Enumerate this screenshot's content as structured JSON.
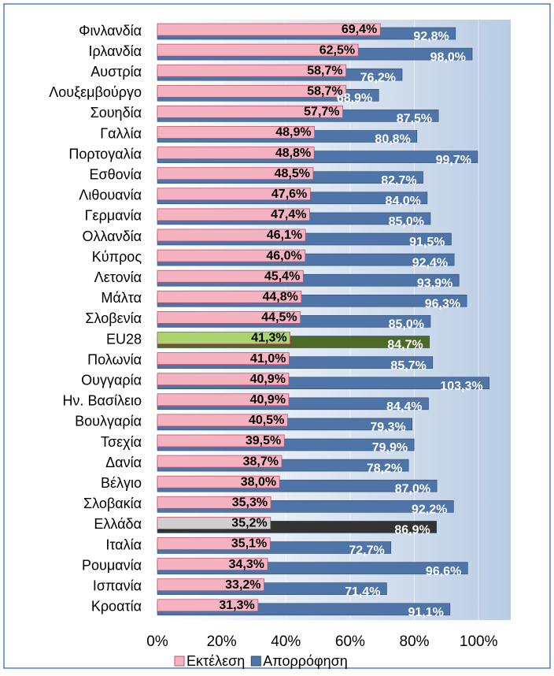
{
  "chart_data": {
    "type": "bar",
    "orientation": "horizontal",
    "legend": "bottom",
    "grid": true,
    "categories": [
      "Φινλανδία",
      "Ιρλανδία",
      "Αυστρία",
      "Λουξεμβούργο",
      "Σουηδία",
      "Γαλλία",
      "Πορτογαλία",
      "Εσθονία",
      "Λιθουανία",
      "Γερμανία",
      "Ολλανδία",
      "Κύπρος",
      "Λετονία",
      "Μάλτα",
      "Σλοβενία",
      "EU28",
      "Πολωνία",
      "Ουγγαρία",
      "Ην. Βασίλειο",
      "Βουλγαρία",
      "Τσεχία",
      "Δανία",
      "Βέλγιο",
      "Σλοβακία",
      "Ελλάδα",
      "Ιταλία",
      "Ρουμανία",
      "Ισπανία",
      "Κροατία"
    ],
    "series": [
      {
        "name": "Εκτέλεση",
        "color": "#f5b3c1",
        "colors": [
          "#f5b3c1",
          "#f5b3c1",
          "#f5b3c1",
          "#f5b3c1",
          "#f5b3c1",
          "#f5b3c1",
          "#f5b3c1",
          "#f5b3c1",
          "#f5b3c1",
          "#f5b3c1",
          "#f5b3c1",
          "#f5b3c1",
          "#f5b3c1",
          "#f5b3c1",
          "#f5b3c1",
          "#a9d46e",
          "#f5b3c1",
          "#f5b3c1",
          "#f5b3c1",
          "#f5b3c1",
          "#f5b3c1",
          "#f5b3c1",
          "#f5b3c1",
          "#f5b3c1",
          "#cfcfcf",
          "#f5b3c1",
          "#f5b3c1",
          "#f5b3c1",
          "#f5b3c1"
        ],
        "values": [
          69.4,
          62.5,
          58.7,
          58.7,
          57.7,
          48.9,
          48.8,
          48.5,
          47.6,
          47.4,
          46.1,
          46.0,
          45.4,
          44.8,
          44.5,
          41.3,
          41.0,
          40.9,
          40.9,
          40.5,
          39.5,
          38.7,
          38.0,
          35.3,
          35.2,
          35.1,
          34.3,
          33.2,
          31.3
        ],
        "value_labels": [
          "69,4%",
          "62,5%",
          "58,7%",
          "58,7%",
          "57,7%",
          "48,9%",
          "48,8%",
          "48,5%",
          "47,6%",
          "47,4%",
          "46,1%",
          "46,0%",
          "45,4%",
          "44,8%",
          "44,5%",
          "41,3%",
          "41,0%",
          "40,9%",
          "40,9%",
          "40,5%",
          "39,5%",
          "38,7%",
          "38,0%",
          "35,3%",
          "35,2%",
          "35,1%",
          "34,3%",
          "33,2%",
          "31,3%"
        ]
      },
      {
        "name": "Απορρόφηση",
        "color": "#4f74a8",
        "colors": [
          "#4f74a8",
          "#4f74a8",
          "#4f74a8",
          "#4f74a8",
          "#4f74a8",
          "#4f74a8",
          "#4f74a8",
          "#4f74a8",
          "#4f74a8",
          "#4f74a8",
          "#4f74a8",
          "#4f74a8",
          "#4f74a8",
          "#4f74a8",
          "#4f74a8",
          "#4d6a27",
          "#4f74a8",
          "#4f74a8",
          "#4f74a8",
          "#4f74a8",
          "#4f74a8",
          "#4f74a8",
          "#4f74a8",
          "#4f74a8",
          "#333333",
          "#4f74a8",
          "#4f74a8",
          "#4f74a8",
          "#4f74a8"
        ],
        "values": [
          92.8,
          98.0,
          76.2,
          68.9,
          87.5,
          80.8,
          99.7,
          82.7,
          84.0,
          85.0,
          91.5,
          92.4,
          93.9,
          96.3,
          85.0,
          84.7,
          85.7,
          103.3,
          84.4,
          79.3,
          79.9,
          78.2,
          87.0,
          92.2,
          86.9,
          72.7,
          96.6,
          71.4,
          91.1
        ],
        "value_labels": [
          "92,8%",
          "98,0%",
          "76,2%",
          "68,9%",
          "87,5%",
          "80,8%",
          "99,7%",
          "82,7%",
          "84,0%",
          "85,0%",
          "91,5%",
          "92,4%",
          "93,9%",
          "96,3%",
          "85,0%",
          "84,7%",
          "85,7%",
          "103,3%",
          "84,4%",
          "79,3%",
          "79,9%",
          "78,2%",
          "87,0%",
          "92,2%",
          "86,9%",
          "72,7%",
          "96,6%",
          "71,4%",
          "91,1%"
        ]
      }
    ],
    "xlim": [
      0,
      110
    ],
    "xticks": [
      {
        "value": 0,
        "label": "0%"
      },
      {
        "value": 20,
        "label": "20%"
      },
      {
        "value": 40,
        "label": "40%"
      },
      {
        "value": 60,
        "label": "60%"
      },
      {
        "value": 80,
        "label": "80%"
      },
      {
        "value": 100,
        "label": "100%"
      }
    ]
  }
}
